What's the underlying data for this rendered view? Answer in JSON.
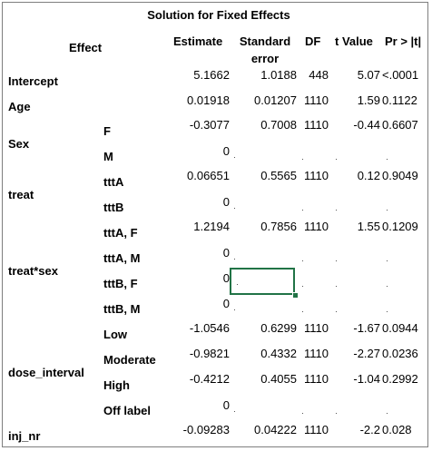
{
  "table": {
    "title": "Solution for Fixed Effects",
    "headers": {
      "effect": "Effect",
      "estimate": "Estimate",
      "stderr_line1": "Standard",
      "stderr_line2": "error",
      "df": "DF",
      "tvalue": "t Value",
      "p": "Pr > |t|"
    },
    "groups": {
      "intercept": "Intercept",
      "age": "Age",
      "sex": "Sex",
      "treat": "treat",
      "treat_sex": "treat*sex",
      "dose_interval": "dose_interval",
      "inj_nr": "inj_nr"
    },
    "levels": [
      "F",
      "M",
      "tttA",
      "tttB",
      "tttA, F",
      "tttA, M",
      "tttB, F",
      "tttB, M",
      "Low",
      "Moderate",
      "High",
      "Off label"
    ],
    "rows": [
      {
        "estimate": "5.1662",
        "stderr": "1.0188",
        "df": "448",
        "tvalue": "5.07",
        "p": "<.0001"
      },
      {
        "estimate": "0.01918",
        "stderr": "0.01207",
        "df": "1110",
        "tvalue": "1.59",
        "p": "0.1122"
      },
      {
        "estimate": "-0.3077",
        "stderr": "0.7008",
        "df": "1110",
        "tvalue": "-0.44",
        "p": "0.6607"
      },
      {
        "estimate": "0",
        "stderr": "",
        "df": "",
        "tvalue": "",
        "p": ""
      },
      {
        "estimate": "0.06651",
        "stderr": "0.5565",
        "df": "1110",
        "tvalue": "0.12",
        "p": "0.9049"
      },
      {
        "estimate": "0",
        "stderr": "",
        "df": "",
        "tvalue": "",
        "p": ""
      },
      {
        "estimate": "1.2194",
        "stderr": "0.7856",
        "df": "1110",
        "tvalue": "1.55",
        "p": "0.1209"
      },
      {
        "estimate": "0",
        "stderr": "",
        "df": "",
        "tvalue": "",
        "p": ""
      },
      {
        "estimate": "0",
        "stderr": "",
        "df": "",
        "tvalue": "",
        "p": ""
      },
      {
        "estimate": "0",
        "stderr": "",
        "df": "",
        "tvalue": "",
        "p": ""
      },
      {
        "estimate": "-1.0546",
        "stderr": "0.6299",
        "df": "1110",
        "tvalue": "-1.67",
        "p": "0.0944"
      },
      {
        "estimate": "-0.9821",
        "stderr": "0.4332",
        "df": "1110",
        "tvalue": "-2.27",
        "p": "0.0236"
      },
      {
        "estimate": "-0.4212",
        "stderr": "0.4055",
        "df": "1110",
        "tvalue": "-1.04",
        "p": "0.2992"
      },
      {
        "estimate": "0",
        "stderr": "",
        "df": "",
        "tvalue": "",
        "p": ""
      },
      {
        "estimate": "-0.09283",
        "stderr": "0.04222",
        "df": "1110",
        "tvalue": "-2.2",
        "p": "0.028"
      }
    ],
    "selection_color": "#217346"
  }
}
